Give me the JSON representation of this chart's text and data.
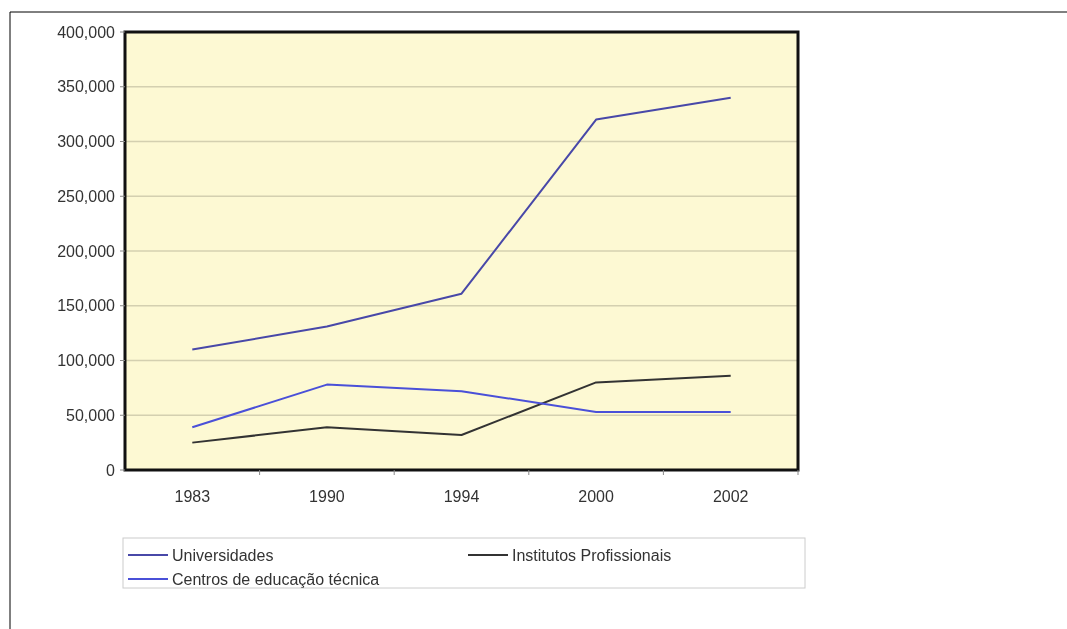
{
  "chart_data": {
    "type": "line",
    "categories": [
      "1983",
      "1990",
      "1994",
      "2000",
      "2002"
    ],
    "series": [
      {
        "name": "Universidades",
        "color": "#4848a8",
        "values": [
          110000,
          131000,
          161000,
          320000,
          340000
        ]
      },
      {
        "name": "Institutos Profissionais",
        "color": "#333333",
        "values": [
          25000,
          39000,
          32000,
          80000,
          86000
        ]
      },
      {
        "name": "Centros de educação técnica",
        "color": "#4a50d8",
        "values": [
          39000,
          78000,
          72000,
          53000,
          53000
        ]
      }
    ],
    "ylim": [
      0,
      400000
    ],
    "yticks": [
      0,
      {
        "value": 50000,
        "label": "50,000"
      },
      {
        "value": 100000,
        "label": "100,000"
      },
      {
        "value": 150000,
        "label": "150,000"
      },
      {
        "value": 200000,
        "label": "200,000"
      },
      {
        "value": 250000,
        "label": "250,000"
      },
      {
        "value": 300000,
        "label": "300,000"
      },
      {
        "value": 350000,
        "label": "350,000"
      },
      {
        "value": 400000,
        "label": "400,000"
      }
    ],
    "grid": "y",
    "legend": "bottom",
    "marker": "none",
    "line_style": "solid"
  }
}
